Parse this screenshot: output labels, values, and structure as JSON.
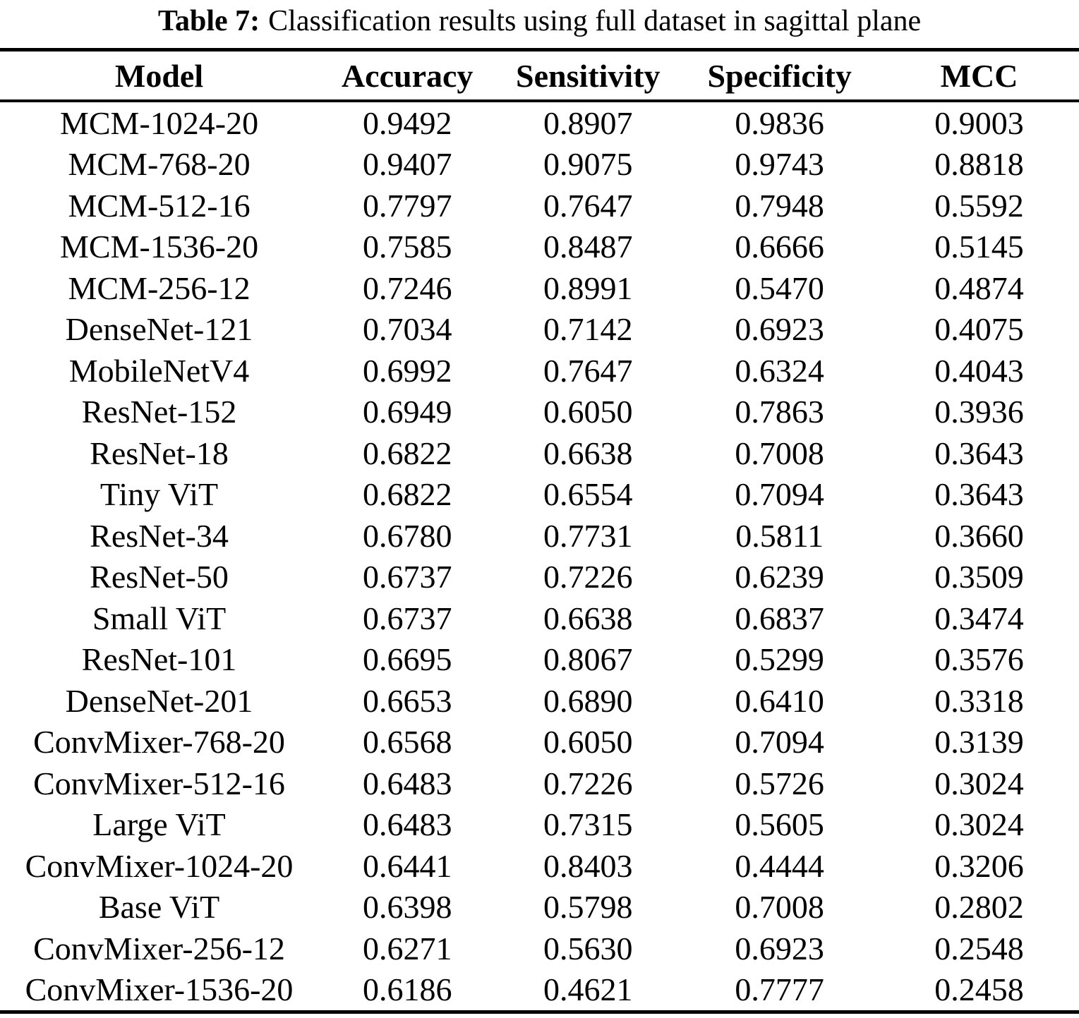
{
  "caption": {
    "label": "Table 7:",
    "text": "Classification results using full dataset in sagittal plane"
  },
  "table": {
    "columns": [
      "Model",
      "Accuracy",
      "Sensitivity",
      "Specificity",
      "MCC"
    ],
    "rows": [
      {
        "model": "MCM-1024-20",
        "accuracy": "0.9492",
        "sensitivity": "0.8907",
        "specificity": "0.9836",
        "mcc": "0.9003"
      },
      {
        "model": "MCM-768-20",
        "accuracy": "0.9407",
        "sensitivity": "0.9075",
        "specificity": "0.9743",
        "mcc": "0.8818"
      },
      {
        "model": "MCM-512-16",
        "accuracy": "0.7797",
        "sensitivity": "0.7647",
        "specificity": "0.7948",
        "mcc": "0.5592"
      },
      {
        "model": "MCM-1536-20",
        "accuracy": "0.7585",
        "sensitivity": "0.8487",
        "specificity": "0.6666",
        "mcc": "0.5145"
      },
      {
        "model": "MCM-256-12",
        "accuracy": "0.7246",
        "sensitivity": "0.8991",
        "specificity": "0.5470",
        "mcc": "0.4874"
      },
      {
        "model": "DenseNet-121",
        "accuracy": "0.7034",
        "sensitivity": "0.7142",
        "specificity": "0.6923",
        "mcc": "0.4075"
      },
      {
        "model": "MobileNetV4",
        "accuracy": "0.6992",
        "sensitivity": "0.7647",
        "specificity": "0.6324",
        "mcc": "0.4043"
      },
      {
        "model": "ResNet-152",
        "accuracy": "0.6949",
        "sensitivity": "0.6050",
        "specificity": "0.7863",
        "mcc": "0.3936"
      },
      {
        "model": "ResNet-18",
        "accuracy": "0.6822",
        "sensitivity": "0.6638",
        "specificity": "0.7008",
        "mcc": "0.3643"
      },
      {
        "model": "Tiny ViT",
        "accuracy": "0.6822",
        "sensitivity": "0.6554",
        "specificity": "0.7094",
        "mcc": "0.3643"
      },
      {
        "model": "ResNet-34",
        "accuracy": "0.6780",
        "sensitivity": "0.7731",
        "specificity": "0.5811",
        "mcc": "0.3660"
      },
      {
        "model": "ResNet-50",
        "accuracy": "0.6737",
        "sensitivity": "0.7226",
        "specificity": "0.6239",
        "mcc": "0.3509"
      },
      {
        "model": "Small ViT",
        "accuracy": "0.6737",
        "sensitivity": "0.6638",
        "specificity": "0.6837",
        "mcc": "0.3474"
      },
      {
        "model": "ResNet-101",
        "accuracy": "0.6695",
        "sensitivity": "0.8067",
        "specificity": "0.5299",
        "mcc": "0.3576"
      },
      {
        "model": "DenseNet-201",
        "accuracy": "0.6653",
        "sensitivity": "0.6890",
        "specificity": "0.6410",
        "mcc": "0.3318"
      },
      {
        "model": "ConvMixer-768-20",
        "accuracy": "0.6568",
        "sensitivity": "0.6050",
        "specificity": "0.7094",
        "mcc": "0.3139"
      },
      {
        "model": "ConvMixer-512-16",
        "accuracy": "0.6483",
        "sensitivity": "0.7226",
        "specificity": "0.5726",
        "mcc": "0.3024"
      },
      {
        "model": "Large ViT",
        "accuracy": "0.6483",
        "sensitivity": "0.7315",
        "specificity": "0.5605",
        "mcc": "0.3024"
      },
      {
        "model": "ConvMixer-1024-20",
        "accuracy": "0.6441",
        "sensitivity": "0.8403",
        "specificity": "0.4444",
        "mcc": "0.3206"
      },
      {
        "model": "Base ViT",
        "accuracy": "0.6398",
        "sensitivity": "0.5798",
        "specificity": "0.7008",
        "mcc": "0.2802"
      },
      {
        "model": "ConvMixer-256-12",
        "accuracy": "0.6271",
        "sensitivity": "0.5630",
        "specificity": "0.6923",
        "mcc": "0.2548"
      },
      {
        "model": "ConvMixer-1536-20",
        "accuracy": "0.6186",
        "sensitivity": "0.4621",
        "specificity": "0.7777",
        "mcc": "0.2458"
      }
    ]
  }
}
